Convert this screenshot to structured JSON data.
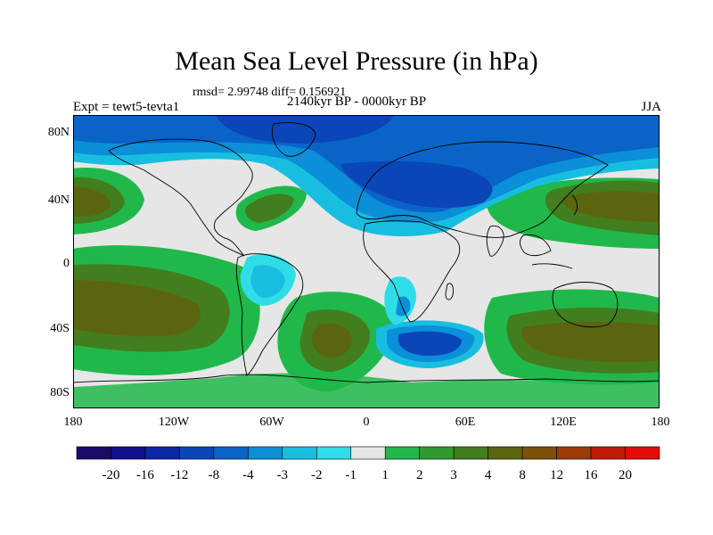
{
  "title": "Mean Sea Level Pressure (in hPa)",
  "stats": "rmsd= 2.99748 diff= 0.156921",
  "period": "2140kyr BP - 0000kyr BP",
  "experiment": "Expt = tewt5-tevta1",
  "season": "JJA",
  "lat_labels": [
    "80N",
    "40N",
    "0",
    "40S",
    "80S"
  ],
  "lon_labels": [
    "180",
    "120W",
    "60W",
    "0",
    "60E",
    "120E",
    "180"
  ],
  "legend": {
    "colors": [
      "#1a0a6b",
      "#110f8c",
      "#0c26a8",
      "#0a46b8",
      "#0a64c8",
      "#0b8fd8",
      "#18bee0",
      "#2fdde8",
      "#e6e6e6",
      "#20b84a",
      "#2f9a2f",
      "#437e1e",
      "#5b6510",
      "#7b5008",
      "#9c3a08",
      "#c01a08",
      "#e20c0a"
    ],
    "labels": [
      "-20",
      "-16",
      "-12",
      "-8",
      "-4",
      "-3",
      "-2",
      "-1",
      "1",
      "2",
      "3",
      "4",
      "8",
      "12",
      "16",
      "20"
    ]
  }
}
